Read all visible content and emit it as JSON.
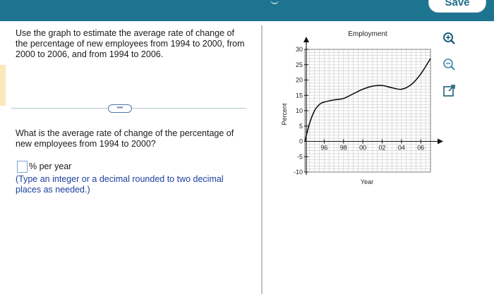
{
  "toolbar": {
    "save_label": "Save"
  },
  "question": {
    "prompt": "Use the graph to estimate the average rate of change of the percentage of new employees from 1994 to 2000, from 2000 to 2006, and from 1994 to 2006.",
    "more_label": "•••",
    "sub_question": "What is the average rate of change of the percentage of new employees from 1994 to 2000?",
    "answer_value": "",
    "answer_unit": "% per year",
    "hint": "(Type an integer or a decimal rounded to two decimal places as needed.)"
  },
  "colors": {
    "header": "#1d7490",
    "hint": "#1b3fa0",
    "accent": "#fbe8bc"
  },
  "side_icons": [
    "zoom-in-icon",
    "zoom-out-icon",
    "open-new-window-icon"
  ],
  "chart_data": {
    "type": "line",
    "title": "Employment",
    "xlabel": "Year",
    "ylabel": "Percent",
    "x_ticks": [
      96,
      98,
      0,
      2,
      4,
      6
    ],
    "x_tick_labels": [
      "96",
      "98",
      "00",
      "02",
      "04",
      "06"
    ],
    "y_ticks": [
      -10,
      -5,
      0,
      5,
      10,
      15,
      20,
      25,
      30
    ],
    "x_range": [
      94,
      107
    ],
    "ylim": [
      -10,
      30
    ],
    "grid": true,
    "x": [
      94,
      94.5,
      95,
      95.5,
      96,
      97,
      98,
      99,
      100,
      101,
      102,
      103,
      104,
      105,
      106,
      107
    ],
    "y": [
      0,
      6,
      10,
      12,
      12.8,
      13.5,
      14,
      15.5,
      17,
      18,
      18.2,
      17.5,
      17,
      18.5,
      22,
      27
    ]
  }
}
